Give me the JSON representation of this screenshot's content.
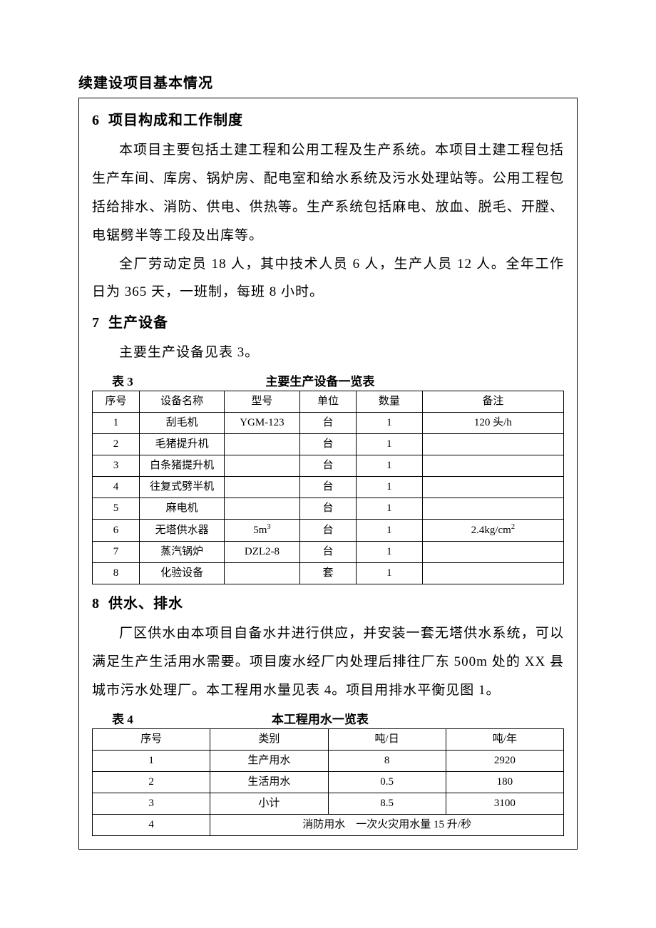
{
  "page_title": "续建设项目基本情况",
  "section6": {
    "num": "6",
    "title": "项目构成和工作制度",
    "p1": "本项目主要包括土建工程和公用工程及生产系统。本项目土建工程包括生产车间、库房、锅炉房、配电室和给水系统及污水处理站等。公用工程包括给排水、消防、供电、供热等。生产系统包括麻电、放血、脱毛、开膛、电锯劈半等工段及出库等。",
    "p2": "全厂劳动定员 18 人，其中技术人员 6 人，生产人员 12 人。全年工作日为 365 天，一班制，每班 8 小时。"
  },
  "section7": {
    "num": "7",
    "title": "生产设备",
    "p1": "主要生产设备见表 3。"
  },
  "table3": {
    "caption_label": "表 3",
    "caption_title": "主要生产设备一览表",
    "headers": [
      "序号",
      "设备名称",
      "型号",
      "单位",
      "数量",
      "备注"
    ],
    "col_widths": [
      "10%",
      "18%",
      "16%",
      "12%",
      "14%",
      "30%"
    ],
    "rows": [
      [
        "1",
        "刮毛机",
        "YGM-123",
        "台",
        "1",
        "120 头/h"
      ],
      [
        "2",
        "毛猪提升机",
        "",
        "台",
        "1",
        ""
      ],
      [
        "3",
        "白条猪提升机",
        "",
        "台",
        "1",
        ""
      ],
      [
        "4",
        "往复式劈半机",
        "",
        "台",
        "1",
        ""
      ],
      [
        "5",
        "麻电机",
        "",
        "台",
        "1",
        ""
      ],
      [
        "6",
        "无塔供水器",
        "5m³",
        "台",
        "1",
        "2.4kg/cm²"
      ],
      [
        "7",
        "蒸汽锅炉",
        "DZL2-8",
        "台",
        "1",
        ""
      ],
      [
        "8",
        "化验设备",
        "",
        "套",
        "1",
        ""
      ]
    ]
  },
  "section8": {
    "num": "8",
    "title": "供水、排水",
    "p1": "厂区供水由本项目自备水井进行供应，并安装一套无塔供水系统，可以满足生产生活用水需要。项目废水经厂内处理后排往厂东 500m 处的 XX 县城市污水处理厂。本工程用水量见表 4。项目用排水平衡见图 1。"
  },
  "table4": {
    "caption_label": "表 4",
    "caption_title": "本工程用水一览表",
    "headers": [
      "序号",
      "类别",
      "吨/日",
      "吨/年"
    ],
    "col_widths": [
      "25%",
      "25%",
      "25%",
      "25%"
    ],
    "rows": [
      [
        "1",
        "生产用水",
        "8",
        "2920"
      ],
      [
        "2",
        "生活用水",
        "0.5",
        "180"
      ],
      [
        "3",
        "小计",
        "8.5",
        "3100"
      ]
    ],
    "footer_row": {
      "first": "4",
      "merged": "消防用水　一次火灾用水量 15 升/秒"
    }
  }
}
